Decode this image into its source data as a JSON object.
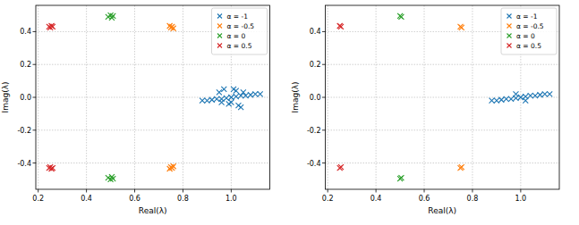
{
  "chart_data": [
    {
      "type": "scatter",
      "x_label": "Real(λ)",
      "y_label": "Imag(λ)",
      "grid": true,
      "legend": "upper right",
      "xlim": [
        0.19,
        1.16
      ],
      "ylim": [
        -0.56,
        0.56
      ],
      "xticks": [
        0.2,
        0.4,
        0.6,
        0.8,
        {
          "value": 1,
          "label": "1.0"
        }
      ],
      "yticks": [
        -0.4,
        -0.2,
        {
          "value": 0,
          "label": "0.0"
        },
        0.2,
        0.4
      ],
      "series": [
        {
          "name": "α = -1",
          "color": "#1f77b4",
          "marker": "x",
          "x": [
            0.88,
            0.9,
            0.92,
            0.94,
            0.96,
            0.98,
            1.0,
            1.02,
            1.04,
            1.06,
            1.08,
            1.1,
            1.12,
            0.95,
            0.97,
            0.99,
            1.01,
            1.03,
            1.05,
            0.96,
            1.0,
            1.04,
            1.02
          ],
          "values": [
            -0.02,
            -0.02,
            -0.015,
            -0.01,
            -0.01,
            -0.005,
            0,
            0.005,
            0.01,
            0.01,
            0.015,
            0.02,
            0.02,
            0.03,
            0.05,
            -0.04,
            0.05,
            -0.05,
            0.03,
            -0.03,
            -0.03,
            -0.06,
            0.04
          ]
        },
        {
          "name": "α = -0.5",
          "color": "#ff7f0e",
          "marker": "x",
          "x": [
            0.745,
            0.75,
            0.755,
            0.76,
            0.745,
            0.75,
            0.755,
            0.76
          ],
          "values": [
            0.435,
            0.425,
            0.43,
            0.42,
            -0.435,
            -0.425,
            -0.43,
            -0.42
          ]
        },
        {
          "name": "α = 0",
          "color": "#2ca02c",
          "marker": "x",
          "x": [
            0.49,
            0.5,
            0.505,
            0.51,
            0.49,
            0.5,
            0.505,
            0.51
          ],
          "values": [
            0.49,
            0.5,
            0.485,
            0.495,
            -0.49,
            -0.5,
            -0.485,
            -0.495
          ]
        },
        {
          "name": "α = 0.5",
          "color": "#d62728",
          "marker": "x",
          "x": [
            0.245,
            0.25,
            0.255,
            0.26,
            0.245,
            0.25,
            0.255,
            0.26
          ],
          "values": [
            0.43,
            0.425,
            0.435,
            0.43,
            -0.43,
            -0.425,
            -0.435,
            -0.43
          ]
        }
      ]
    },
    {
      "type": "scatter",
      "x_label": "Real(λ)",
      "y_label": "Imag(λ)",
      "grid": true,
      "legend": "upper right",
      "xlim": [
        0.19,
        1.16
      ],
      "ylim": [
        -0.56,
        0.56
      ],
      "xticks": [
        0.2,
        0.4,
        0.6,
        0.8,
        {
          "value": 1,
          "label": "1.0"
        }
      ],
      "yticks": [
        -0.4,
        -0.2,
        {
          "value": 0,
          "label": "0.0"
        },
        0.2,
        0.4
      ],
      "series": [
        {
          "name": "α = -1",
          "color": "#1f77b4",
          "marker": "x",
          "x": [
            0.88,
            0.9,
            0.92,
            0.94,
            0.96,
            0.98,
            1.0,
            1.02,
            1.04,
            1.06,
            1.08,
            1.1,
            1.12,
            0.98,
            1.02
          ],
          "values": [
            -0.02,
            -0.02,
            -0.015,
            -0.01,
            -0.01,
            -0.005,
            0,
            0.005,
            0.01,
            0.01,
            0.015,
            0.02,
            0.02,
            0.02,
            -0.02
          ]
        },
        {
          "name": "α = -0.5",
          "color": "#ff7f0e",
          "marker": "x",
          "x": [
            0.75,
            0.755,
            0.75,
            0.755
          ],
          "values": [
            0.43,
            0.425,
            -0.43,
            -0.425
          ]
        },
        {
          "name": "α = 0",
          "color": "#2ca02c",
          "marker": "x",
          "x": [
            0.5,
            0.505,
            0.5,
            0.505
          ],
          "values": [
            0.495,
            0.49,
            -0.495,
            -0.49
          ]
        },
        {
          "name": "α = 0.5",
          "color": "#d62728",
          "marker": "x",
          "x": [
            0.25,
            0.255,
            0.25,
            0.255
          ],
          "values": [
            0.435,
            0.43,
            -0.43,
            -0.425
          ]
        }
      ]
    }
  ]
}
